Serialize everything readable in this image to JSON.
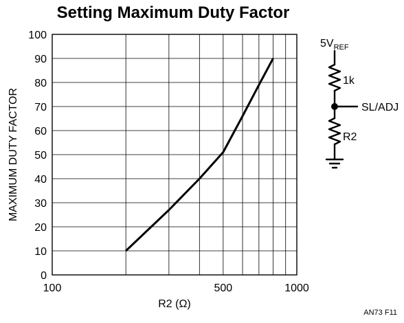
{
  "chart_data": {
    "type": "line",
    "title": "Setting Maximum Duty Factor",
    "xlabel": "R2 (Ω)",
    "ylabel": "MAXIMUM DUTY FACTOR",
    "x_scale": "log",
    "xlim": [
      100,
      1000
    ],
    "ylim": [
      0,
      100
    ],
    "x_ticks": [
      100,
      500,
      1000
    ],
    "y_ticks": [
      0,
      10,
      20,
      30,
      40,
      50,
      60,
      70,
      80,
      90,
      100
    ],
    "grid": true,
    "series": [
      {
        "x": [
          200,
          300,
          400,
          500,
          600,
          700,
          800
        ],
        "y": [
          10,
          27,
          40,
          51,
          66,
          79,
          90
        ]
      }
    ],
    "figure_code": "AN73 F11"
  },
  "schematic": {
    "supply_label": "5V",
    "supply_subscript": "REF",
    "r1_label": "1k",
    "node_label": "SL/ADJ",
    "r2_label": "R2"
  }
}
